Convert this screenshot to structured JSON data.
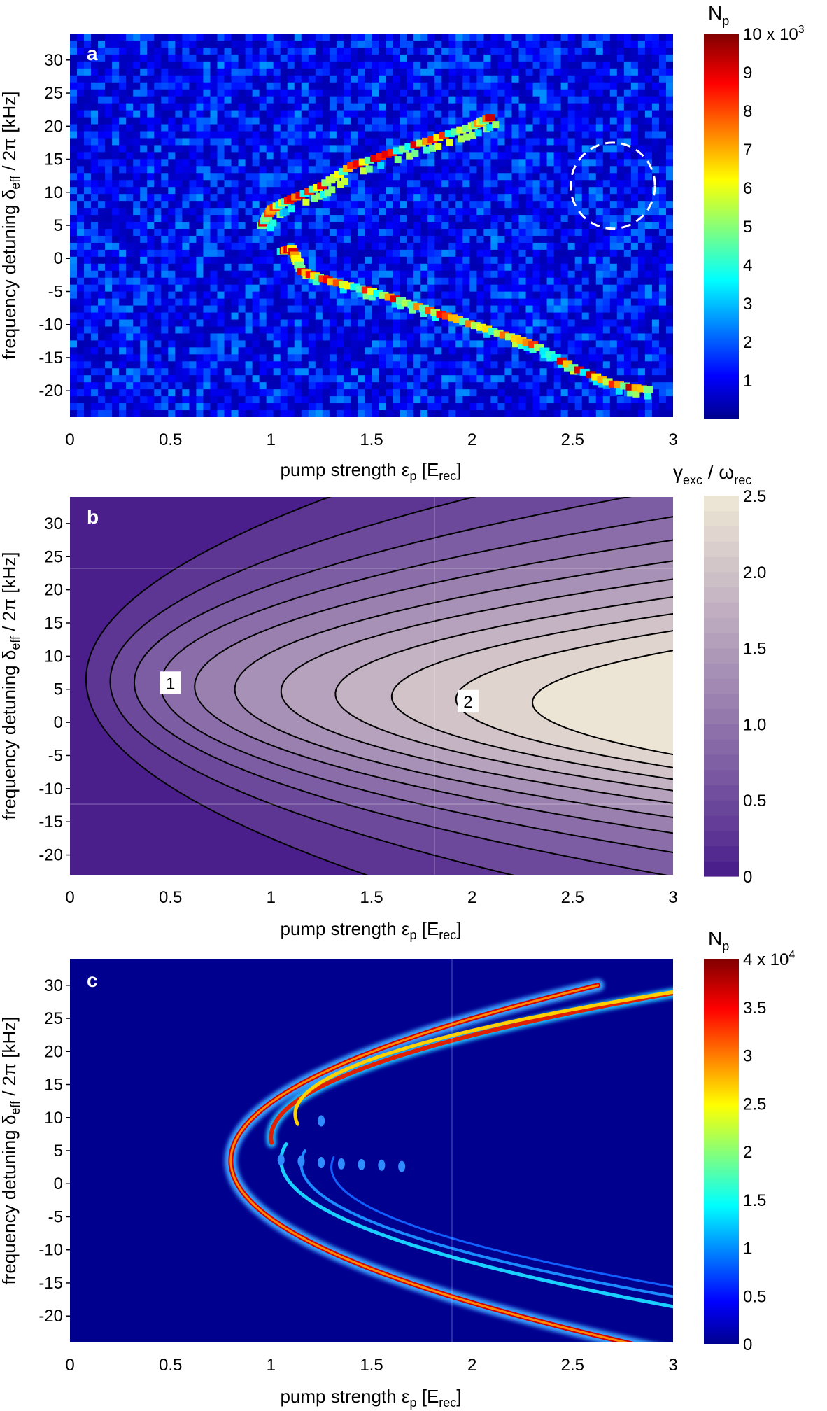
{
  "chart_data": [
    {
      "panel_label": "a",
      "type": "heatmap",
      "xlabel": "pump strength ε_p [E_rec]",
      "xlabel_parts": {
        "main": "pump strength ε",
        "sub": "p",
        "rest": " [E",
        "sub2": "rec",
        "end": "]"
      },
      "ylabel_parts": {
        "main": "frequency detuning δ",
        "sub": "eff",
        "rest": " / 2π [kHz]"
      },
      "xlim": [
        0,
        3
      ],
      "ylim": [
        -24,
        34
      ],
      "xticks": [
        "0",
        "0.5",
        "1",
        "1.5",
        "2",
        "2.5",
        "3"
      ],
      "xtick_values": [
        0,
        0.5,
        1,
        1.5,
        2,
        2.5,
        3
      ],
      "yticks": [
        "30",
        "25",
        "20",
        "15",
        "10",
        "5",
        "0",
        "-5",
        "-10",
        "-15",
        "-20"
      ],
      "ytick_values": [
        30,
        25,
        20,
        15,
        10,
        5,
        0,
        -5,
        -10,
        -15,
        -20
      ],
      "colorbar": {
        "label_main": "N",
        "label_sub": "p",
        "min": 0,
        "max": 10,
        "ticks": [
          "1",
          "2",
          "3",
          "4",
          "5",
          "6",
          "7",
          "8",
          "9",
          "10 x 10"
        ],
        "tick_values": [
          1,
          2,
          3,
          4,
          5,
          6,
          7,
          8,
          9,
          10
        ],
        "top_exponent": "3",
        "colormap": "jet"
      },
      "annotation": "dashed circle around (2.7, 11)",
      "circle": {
        "cx": 2.7,
        "cy": 11,
        "r_x": 0.21,
        "r_y": 6.5
      },
      "branches": [
        {
          "name": "lower",
          "points": [
            [
              1.05,
              1
            ],
            [
              1.1,
              1.5
            ],
            [
              1.15,
              -2
            ],
            [
              1.3,
              -3.5
            ],
            [
              1.5,
              -5
            ],
            [
              1.7,
              -7
            ],
            [
              1.9,
              -9
            ],
            [
              2.1,
              -11
            ],
            [
              2.3,
              -13
            ],
            [
              2.5,
              -16.5
            ],
            [
              2.7,
              -19
            ],
            [
              2.9,
              -20
            ]
          ]
        },
        {
          "name": "upper",
          "points": [
            [
              0.95,
              5
            ],
            [
              1.0,
              7.5
            ],
            [
              1.1,
              9
            ],
            [
              1.25,
              11
            ],
            [
              1.4,
              14
            ],
            [
              1.6,
              16
            ],
            [
              1.8,
              18
            ],
            [
              2.0,
              20
            ],
            [
              2.1,
              21.5
            ]
          ]
        }
      ]
    },
    {
      "panel_label": "b",
      "type": "contour",
      "xlim": [
        0,
        3
      ],
      "ylim": [
        -23,
        34
      ],
      "xticks": [
        "0",
        "0.5",
        "1",
        "1.5",
        "2",
        "2.5",
        "3"
      ],
      "xtick_values": [
        0,
        0.5,
        1,
        1.5,
        2,
        2.5,
        3
      ],
      "yticks": [
        "30",
        "25",
        "20",
        "15",
        "10",
        "5",
        "0",
        "-5",
        "-10",
        "-15",
        "-20"
      ],
      "ytick_values": [
        30,
        25,
        20,
        15,
        10,
        5,
        0,
        -5,
        -10,
        -15,
        -20
      ],
      "xlabel_parts": {
        "main": "pump strength ε",
        "sub": "p",
        "rest": " [E",
        "sub2": "rec",
        "end": "]"
      },
      "ylabel_parts": {
        "main": "frequency detuning δ",
        "sub": "eff",
        "rest": " / 2π [kHz]"
      },
      "colorbar": {
        "label_main": "γ",
        "label_sub": "exc",
        "label_mid": " / ω",
        "label_sub2": "rec",
        "min": 0,
        "max": 2.5,
        "ticks": [
          "0",
          "0.5",
          "1.0",
          "1.5",
          "2.0",
          "2.5"
        ],
        "tick_values": [
          0,
          0.5,
          1.0,
          1.5,
          2.0,
          2.5
        ]
      },
      "contour_vertices": [
        {
          "x": 0.08,
          "y": 6.5
        },
        {
          "x": 0.2,
          "y": 6.2
        },
        {
          "x": 0.32,
          "y": 6.0
        },
        {
          "x": 0.45,
          "y": 5.7
        },
        {
          "x": 0.62,
          "y": 5.4
        },
        {
          "x": 0.82,
          "y": 5.0
        },
        {
          "x": 1.05,
          "y": 4.7
        },
        {
          "x": 1.32,
          "y": 4.3
        },
        {
          "x": 1.6,
          "y": 3.9
        },
        {
          "x": 1.92,
          "y": 3.5
        },
        {
          "x": 2.3,
          "y": 3.0
        }
      ],
      "labels": [
        {
          "text": "1",
          "x": 0.5,
          "y": 6
        },
        {
          "text": "2",
          "x": 1.98,
          "y": 3.2
        }
      ]
    },
    {
      "panel_label": "c",
      "type": "heatmap",
      "xlim": [
        0,
        3
      ],
      "ylim": [
        -24,
        34
      ],
      "xticks": [
        "0",
        "0.5",
        "1",
        "1.5",
        "2",
        "2.5",
        "3"
      ],
      "xtick_values": [
        0,
        0.5,
        1,
        1.5,
        2,
        2.5,
        3
      ],
      "yticks": [
        "30",
        "25",
        "20",
        "15",
        "10",
        "5",
        "0",
        "-5",
        "-10",
        "-15",
        "-20"
      ],
      "ytick_values": [
        30,
        25,
        20,
        15,
        10,
        5,
        0,
        -5,
        -10,
        -15,
        -20
      ],
      "xlabel_parts": {
        "main": "pump strength ε",
        "sub": "p",
        "rest": " [E",
        "sub2": "rec",
        "end": "]"
      },
      "ylabel_parts": {
        "main": "frequency detuning δ",
        "sub": "eff",
        "rest": " / 2π [kHz]"
      },
      "colorbar": {
        "label_main": "N",
        "label_sub": "p",
        "min": 0,
        "max": 4,
        "ticks": [
          "0",
          "0.5",
          "1",
          "1.5",
          "2",
          "2.5",
          "3",
          "3.5",
          "4 x 10"
        ],
        "tick_values": [
          0,
          0.5,
          1,
          1.5,
          2,
          2.5,
          3,
          3.5,
          4
        ],
        "top_exponent": "4",
        "colormap": "jet"
      },
      "branches": [
        {
          "name": "main",
          "vertex": [
            0.8,
            3.5
          ],
          "color": "#c80000"
        },
        {
          "name": "second",
          "vertex": [
            0.97,
            7.5
          ],
          "color": "#e03000"
        },
        {
          "name": "third",
          "vertex": [
            1.05,
            3.5
          ],
          "color": "#20b0ff"
        }
      ]
    }
  ]
}
